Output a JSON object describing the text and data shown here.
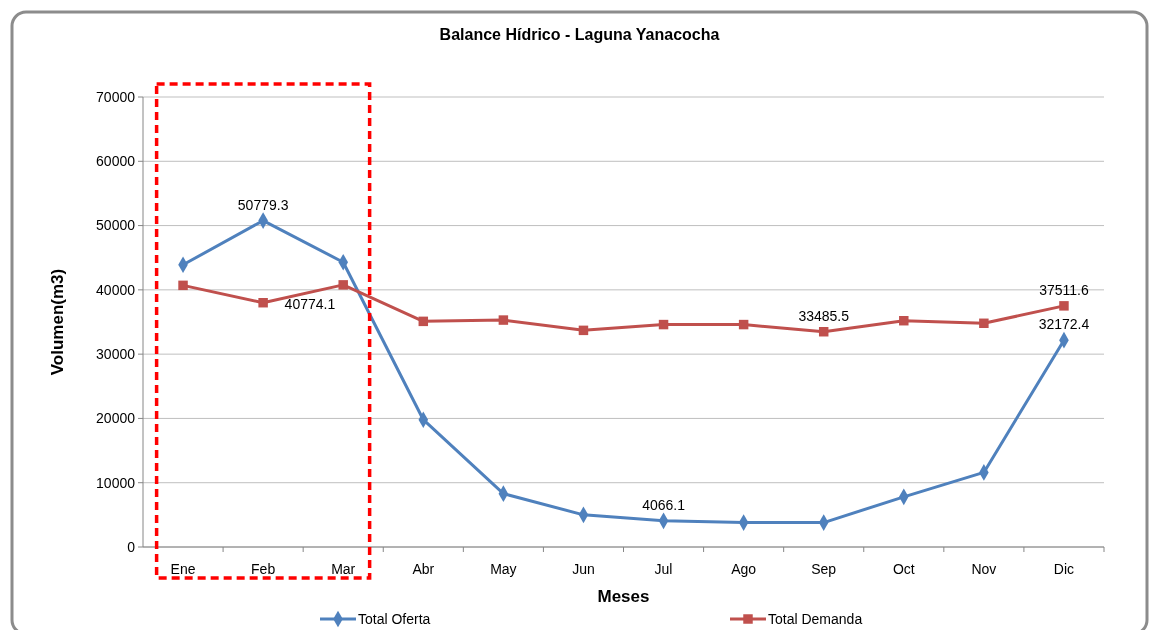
{
  "chart_data": {
    "type": "line",
    "title": "Balance Hídrico - Laguna Yanacocha",
    "xlabel": "Meses",
    "ylabel": "Volumen(m3)",
    "categories": [
      "Ene",
      "Feb",
      "Mar",
      "Abr",
      "May",
      "Jun",
      "Jul",
      "Ago",
      "Sep",
      "Oct",
      "Nov",
      "Dic"
    ],
    "series": [
      {
        "name": "Total Oferta",
        "color": "#4f81bd",
        "marker": "diamond",
        "values": [
          43900,
          50779.3,
          44300,
          19800,
          8300,
          5000,
          4066.1,
          3800,
          3800,
          7800,
          11600,
          32172.4
        ],
        "value_labels": [
          null,
          "50779.3",
          null,
          null,
          null,
          null,
          "4066.1",
          null,
          null,
          null,
          null,
          "32172.4"
        ]
      },
      {
        "name": "Total Demanda",
        "color": "#c0504d",
        "marker": "square",
        "values": [
          40700,
          38000,
          40774.1,
          35100,
          35300,
          33700,
          34600,
          34600,
          33485.5,
          35200,
          34800,
          37511.6
        ],
        "value_labels": [
          null,
          null,
          "40774.1",
          null,
          null,
          null,
          null,
          null,
          "33485.5",
          null,
          null,
          "37511.6"
        ]
      }
    ],
    "ylim": [
      0,
      70000
    ],
    "yticks": [
      0,
      10000,
      20000,
      30000,
      40000,
      50000,
      60000,
      70000
    ],
    "grid": "y",
    "legend": "bottom",
    "line_style": "solid"
  }
}
